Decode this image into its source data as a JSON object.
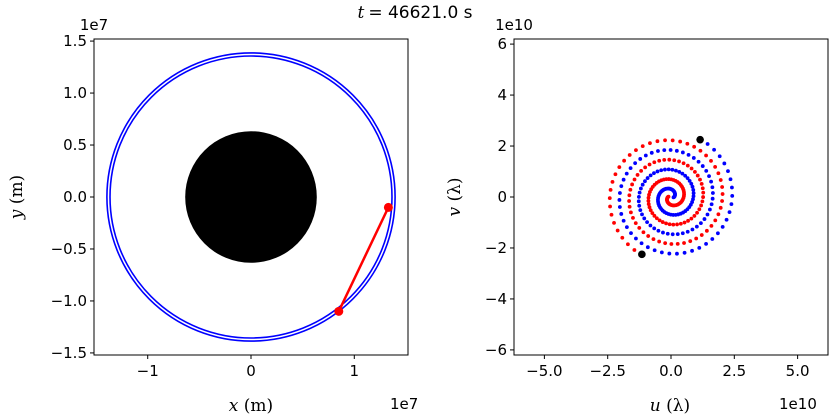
{
  "figure": {
    "title_var": "t",
    "title_value": "= 46621.0 s"
  },
  "chart_data": [
    {
      "type": "line",
      "ax": {
        "x_label_var": "x",
        "x_label_unit": " (m)",
        "y_label_var": "y",
        "y_label_unit": " (m)",
        "x_exponent": "1e7",
        "y_exponent": "1e7",
        "xlim": [
          -1.52,
          1.52
        ],
        "ylim": [
          -1.52,
          1.52
        ],
        "x_ticks": [
          -1,
          0,
          1
        ],
        "x_tick_labels": [
          "−1",
          "0",
          "1"
        ],
        "y_ticks": [
          -1.5,
          -1.0,
          -0.5,
          0.0,
          0.5,
          1.0,
          1.5
        ],
        "y_tick_labels": [
          "−1.5",
          "−1.0",
          "−0.5",
          "0.0",
          "0.5",
          "1.0",
          "1.5"
        ]
      },
      "planet": {
        "center": [
          0,
          0
        ],
        "radius": 0.637,
        "color": "#000000"
      },
      "orbits": [
        {
          "radius": 1.365,
          "color": "#0000ff"
        },
        {
          "radius": 1.395,
          "color": "#0000ff"
        }
      ],
      "baseline": {
        "points": [
          [
            1.33,
            -0.1
          ],
          [
            0.85,
            -1.1
          ]
        ],
        "color": "#ff0000"
      }
    },
    {
      "type": "scatter",
      "ax": {
        "x_label_var": "u",
        "x_label_unit": " (λ)",
        "y_label_var": "v",
        "y_label_unit": " (λ)",
        "x_exponent": "1e10",
        "y_exponent": "1e10",
        "xlim": [
          -6.2,
          6.2
        ],
        "ylim": [
          -6.2,
          6.2
        ],
        "x_ticks": [
          -5,
          -2.5,
          0,
          2.5,
          5
        ],
        "x_tick_labels": [
          "−5.0",
          "−2.5",
          "0.0",
          "2.5",
          "5.0"
        ],
        "y_ticks": [
          -6,
          -4,
          -2,
          0,
          2,
          4,
          6
        ],
        "y_tick_labels": [
          "−6",
          "−4",
          "−2",
          "0",
          "2",
          "4",
          "6"
        ]
      },
      "spiral": {
        "r_min": 0.1,
        "r_max": 2.55,
        "turns": 3.2,
        "n_points": 150
      },
      "series": [
        {
          "color": "#0000ff"
        },
        {
          "color": "#ff0000"
        }
      ],
      "current_points": [
        [
          1.15,
          2.25
        ],
        [
          -1.15,
          -2.25
        ]
      ],
      "current_color": "#000000"
    }
  ]
}
